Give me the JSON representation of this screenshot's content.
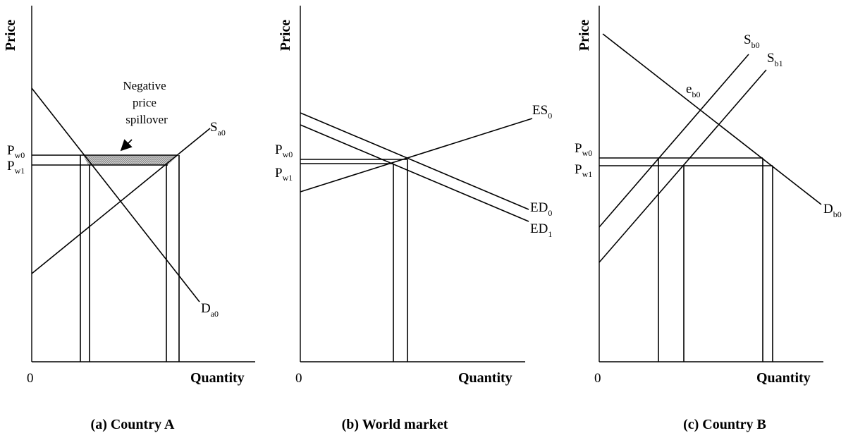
{
  "axes": {
    "y_label": "Price",
    "x_label": "Quantity",
    "origin": "0"
  },
  "panel_a": {
    "caption": "(a) Country A",
    "p_w0": {
      "main": "P",
      "sub": "w0"
    },
    "p_w1": {
      "main": "P",
      "sub": "w1"
    },
    "supply": {
      "main": "S",
      "sub": "a0"
    },
    "demand": {
      "main": "D",
      "sub": "a0"
    },
    "annotation": [
      "Negative",
      "price",
      "spillover"
    ]
  },
  "panel_b": {
    "caption": "(b) World market",
    "p_w0": {
      "main": "P",
      "sub": "w0"
    },
    "p_w1": {
      "main": "P",
      "sub": "w1"
    },
    "es0": {
      "main": "ES",
      "sub": "0"
    },
    "ed0": {
      "main": "ED",
      "sub": "0"
    },
    "ed1": {
      "main": "ED",
      "sub": "1"
    }
  },
  "panel_c": {
    "caption": "(c) Country B",
    "p_w0": {
      "main": "P",
      "sub": "w0"
    },
    "p_w1": {
      "main": "P",
      "sub": "w1"
    },
    "sb0": {
      "main": "S",
      "sub": "b0"
    },
    "sb1": {
      "main": "S",
      "sub": "b1"
    },
    "db0": {
      "main": "D",
      "sub": "b0"
    },
    "eb0": {
      "main": "e",
      "sub": "b0"
    }
  }
}
